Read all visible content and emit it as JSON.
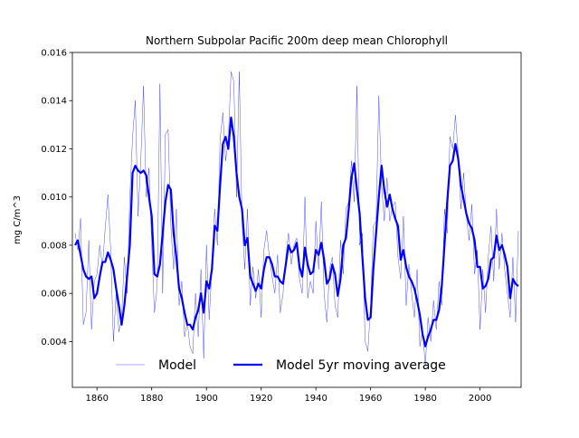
{
  "chart_data": {
    "type": "line",
    "title": "Northern Subpolar Pacific 200m deep mean Chlorophyll",
    "y_label": "mg C/m^3",
    "x": [
      1852,
      1853,
      1854,
      1855,
      1856,
      1857,
      1858,
      1859,
      1860,
      1861,
      1862,
      1863,
      1864,
      1865,
      1866,
      1867,
      1868,
      1869,
      1870,
      1871,
      1872,
      1873,
      1874,
      1875,
      1876,
      1877,
      1878,
      1879,
      1880,
      1881,
      1882,
      1883,
      1884,
      1885,
      1886,
      1887,
      1888,
      1889,
      1890,
      1891,
      1892,
      1893,
      1894,
      1895,
      1896,
      1897,
      1898,
      1899,
      1900,
      1901,
      1902,
      1903,
      1904,
      1905,
      1906,
      1907,
      1908,
      1909,
      1910,
      1911,
      1912,
      1913,
      1914,
      1915,
      1916,
      1917,
      1918,
      1919,
      1920,
      1921,
      1922,
      1923,
      1924,
      1925,
      1926,
      1927,
      1928,
      1929,
      1930,
      1931,
      1932,
      1933,
      1934,
      1935,
      1936,
      1937,
      1938,
      1939,
      1940,
      1941,
      1942,
      1943,
      1944,
      1945,
      1946,
      1947,
      1948,
      1949,
      1950,
      1951,
      1952,
      1953,
      1954,
      1955,
      1956,
      1957,
      1958,
      1959,
      1960,
      1961,
      1962,
      1963,
      1964,
      1965,
      1966,
      1967,
      1968,
      1969,
      1970,
      1971,
      1972,
      1973,
      1974,
      1975,
      1976,
      1977,
      1978,
      1979,
      1980,
      1981,
      1982,
      1983,
      1984,
      1985,
      1986,
      1987,
      1988,
      1989,
      1990,
      1991,
      1992,
      1993,
      1994,
      1995,
      1996,
      1997,
      1998,
      1999,
      2000,
      2001,
      2002,
      2003,
      2004,
      2005,
      2006,
      2007,
      2008,
      2009,
      2010,
      2011,
      2012,
      2013,
      2014
    ],
    "series": [
      {
        "name": "Model",
        "color": "#0000ff",
        "width": 0.35,
        "values": [
          0.0085,
          0.0078,
          0.0091,
          0.0047,
          0.0052,
          0.0082,
          0.0045,
          0.0065,
          0.0068,
          0.008,
          0.0071,
          0.0087,
          0.0101,
          0.0078,
          0.004,
          0.006,
          0.0044,
          0.005,
          0.0075,
          0.006,
          0.01,
          0.0125,
          0.014,
          0.0092,
          0.0115,
          0.0146,
          0.01,
          0.0112,
          0.008,
          0.0052,
          0.0063,
          0.0147,
          0.006,
          0.0126,
          0.0128,
          0.0088,
          0.007,
          0.0095,
          0.0055,
          0.0065,
          0.0042,
          0.0048,
          0.0038,
          0.0035,
          0.006,
          0.0042,
          0.007,
          0.0033,
          0.008,
          0.0049,
          0.0071,
          0.0095,
          0.008,
          0.0124,
          0.0135,
          0.0115,
          0.0124,
          0.0152,
          0.0148,
          0.01,
          0.0152,
          0.009,
          0.007,
          0.0095,
          0.0055,
          0.0071,
          0.0058,
          0.007,
          0.005,
          0.0078,
          0.0086,
          0.0075,
          0.0067,
          0.006,
          0.0076,
          0.0052,
          0.006,
          0.0075,
          0.0085,
          0.0072,
          0.008,
          0.0083,
          0.0066,
          0.006,
          0.01,
          0.0058,
          0.0065,
          0.006,
          0.009,
          0.007,
          0.0098,
          0.006,
          0.0048,
          0.007,
          0.0075,
          0.0055,
          0.005,
          0.0082,
          0.0068,
          0.0095,
          0.0098,
          0.0115,
          0.0098,
          0.0146,
          0.008,
          0.0085,
          0.004,
          0.0036,
          0.0055,
          0.0088,
          0.009,
          0.0142,
          0.0105,
          0.009,
          0.0108,
          0.009,
          0.0096,
          0.0098,
          0.0075,
          0.0066,
          0.0092,
          0.0055,
          0.0072,
          0.006,
          0.005,
          0.007,
          0.0038,
          0.0045,
          0.003,
          0.005,
          0.004,
          0.0057,
          0.0045,
          0.0065,
          0.0055,
          0.0095,
          0.0085,
          0.0125,
          0.012,
          0.0134,
          0.0118,
          0.0095,
          0.011,
          0.0092,
          0.0082,
          0.0097,
          0.0068,
          0.0078,
          0.0045,
          0.007,
          0.0052,
          0.0075,
          0.0088,
          0.0065,
          0.0095,
          0.007,
          0.0085,
          0.007,
          0.006,
          0.005,
          0.0075,
          0.0048,
          0.0086
        ]
      },
      {
        "name": "Model 5yr moving average",
        "color": "#0000ff",
        "width": 2.2,
        "values": [
          0.008,
          0.0082,
          0.0076,
          0.007,
          0.0067,
          0.0066,
          0.0067,
          0.0058,
          0.006,
          0.0067,
          0.0073,
          0.0073,
          0.0077,
          0.0074,
          0.007,
          0.0062,
          0.0055,
          0.0047,
          0.0055,
          0.0067,
          0.008,
          0.011,
          0.0113,
          0.0111,
          0.011,
          0.0111,
          0.0109,
          0.01,
          0.0092,
          0.0068,
          0.0067,
          0.0072,
          0.0085,
          0.0098,
          0.0105,
          0.0103,
          0.0085,
          0.0075,
          0.0062,
          0.0058,
          0.0052,
          0.0047,
          0.0047,
          0.0045,
          0.005,
          0.0053,
          0.006,
          0.0052,
          0.0065,
          0.0062,
          0.007,
          0.0088,
          0.0086,
          0.0105,
          0.0122,
          0.0125,
          0.012,
          0.0133,
          0.0125,
          0.011,
          0.01,
          0.0095,
          0.008,
          0.0083,
          0.0067,
          0.0064,
          0.0061,
          0.0064,
          0.0062,
          0.007,
          0.0075,
          0.0075,
          0.0072,
          0.0067,
          0.0067,
          0.0065,
          0.0064,
          0.0072,
          0.008,
          0.0077,
          0.0078,
          0.0081,
          0.0071,
          0.0067,
          0.0079,
          0.0072,
          0.0068,
          0.0069,
          0.0078,
          0.0076,
          0.0081,
          0.0074,
          0.0064,
          0.0066,
          0.0072,
          0.0068,
          0.0059,
          0.0066,
          0.008,
          0.0083,
          0.0095,
          0.0108,
          0.0114,
          0.0103,
          0.0093,
          0.0075,
          0.0058,
          0.0049,
          0.005,
          0.007,
          0.0085,
          0.01,
          0.0113,
          0.0103,
          0.0096,
          0.0101,
          0.0095,
          0.0091,
          0.0088,
          0.0074,
          0.0078,
          0.0071,
          0.0067,
          0.0065,
          0.0062,
          0.0057,
          0.0051,
          0.0043,
          0.0038,
          0.0042,
          0.0045,
          0.0049,
          0.0049,
          0.0053,
          0.0063,
          0.008,
          0.0098,
          0.0113,
          0.0115,
          0.0122,
          0.0116,
          0.0105,
          0.0099,
          0.0093,
          0.0089,
          0.0087,
          0.0082,
          0.0071,
          0.0071,
          0.0062,
          0.0063,
          0.0066,
          0.0074,
          0.0075,
          0.0084,
          0.0078,
          0.008,
          0.0076,
          0.0071,
          0.0058,
          0.0066,
          0.0064,
          0.0063
        ]
      }
    ],
    "xlim": [
      1851,
      2015
    ],
    "ylim": [
      0.0021,
      0.016
    ],
    "xticks": [
      1860,
      1880,
      1900,
      1920,
      1940,
      1960,
      1980,
      2000
    ],
    "yticks": [
      0.004,
      0.006,
      0.008,
      {
        "value": 0.01,
        "label": "0.010"
      },
      0.012,
      0.014,
      0.016
    ],
    "legend": "lower center",
    "grid": false
  }
}
